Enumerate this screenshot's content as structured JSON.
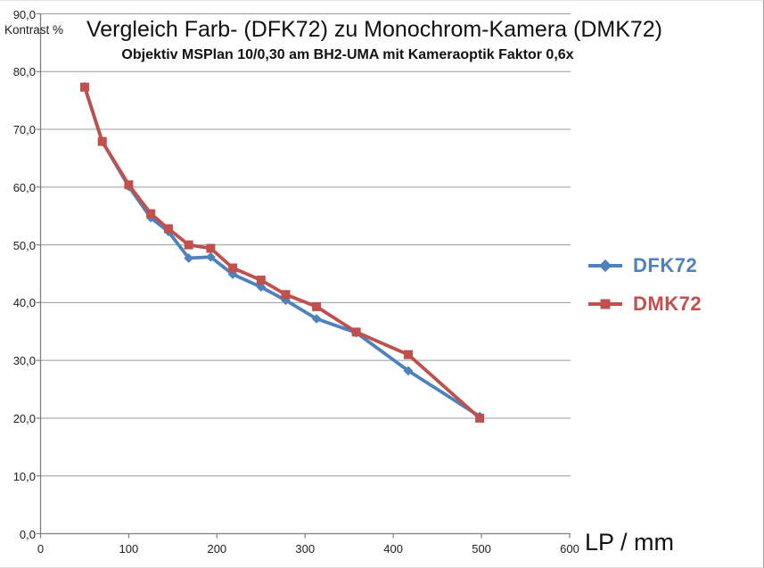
{
  "title": "Vergleich Farb- (DFK72) zu Monochrom-Kamera (DMK72)",
  "subtitle": "Objektiv MSPlan 10/0,30 am BH2-UMA mit Kameraoptik Faktor 0,6x",
  "y_axis_title": "Kontrast %",
  "x_axis_title": "LP / mm",
  "colors": {
    "dfk72_blue": "#4F81BD",
    "dmk72_red": "#C0504D",
    "gridline": "#9c9c9c",
    "axis": "#7f7f7f",
    "tick_text": "#212121"
  },
  "legend": {
    "items": [
      {
        "label": "DFK72",
        "color": "#4F81BD",
        "marker": "diamond"
      },
      {
        "label": "DMK72",
        "color": "#C0504D",
        "marker": "square"
      }
    ],
    "position": "right"
  },
  "chart_data": {
    "type": "line",
    "title": "Vergleich Farb- (DFK72) zu Monochrom-Kamera (DMK72)",
    "subtitle": "Objektiv MSPlan 10/0,30 am BH2-UMA mit Kameraoptik Faktor 0,6x",
    "xlabel": "LP / mm",
    "ylabel": "Kontrast %",
    "xlim": [
      0,
      600
    ],
    "ylim": [
      0,
      90
    ],
    "grid": "horizontal",
    "legend_position": "right-middle",
    "x_tick_values": [
      0,
      100,
      200,
      300,
      400,
      500,
      600
    ],
    "x_tick_labels": [
      "0",
      "100",
      "200",
      "300",
      "400",
      "500",
      "600"
    ],
    "y_tick_values": [
      90,
      80,
      70,
      60,
      50,
      40,
      30,
      20,
      10,
      0
    ],
    "y_tick_labels": [
      "90,0",
      "80,0",
      "70,0",
      "60,0",
      "50,0",
      "40,0",
      "30,0",
      "20,0",
      "10,0",
      "0,0"
    ],
    "x": [
      50,
      70,
      100,
      125,
      145,
      168,
      193,
      218,
      250,
      278,
      313,
      358,
      417,
      498
    ],
    "series": [
      {
        "name": "DFK72",
        "color": "#4F81BD",
        "marker": "diamond",
        "values": [
          77.4,
          67.9,
          60.1,
          54.7,
          52.3,
          47.7,
          47.9,
          44.9,
          42.7,
          40.4,
          37.2,
          34.8,
          28.2,
          20.3
        ]
      },
      {
        "name": "DMK72",
        "color": "#C0504D",
        "marker": "square",
        "values": [
          77.3,
          67.9,
          60.4,
          55.4,
          52.8,
          50.0,
          49.4,
          46.0,
          43.9,
          41.4,
          39.3,
          34.9,
          31.0,
          20.0
        ]
      }
    ]
  }
}
